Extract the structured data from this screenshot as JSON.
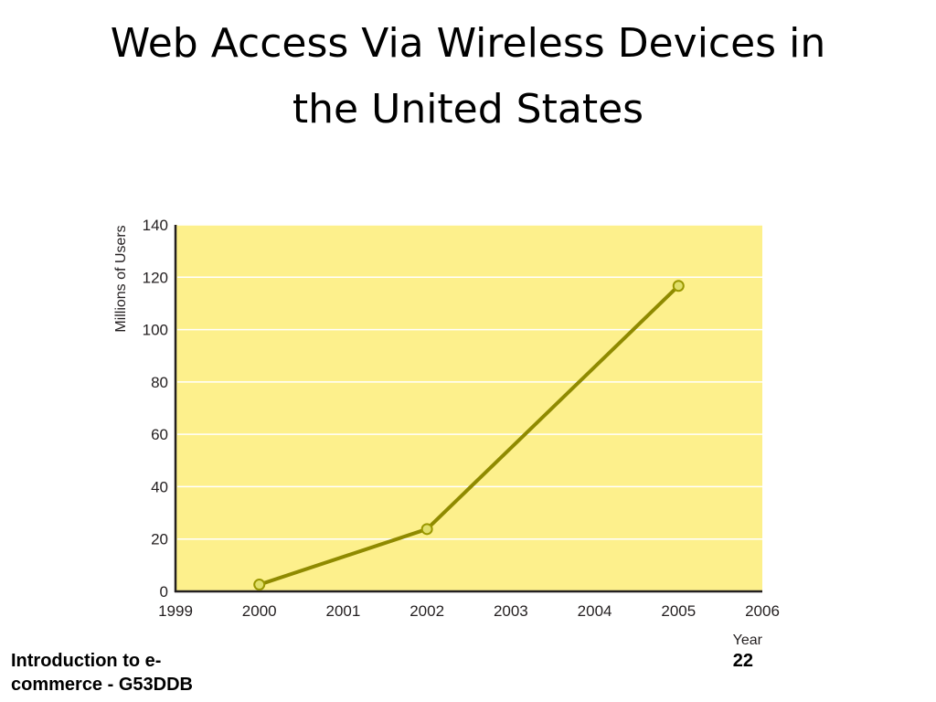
{
  "slide": {
    "title_line1": "Web Access Via Wireless Devices in",
    "title_line2": "the United States",
    "footer_left_line1": "Introduction to e-",
    "footer_left_line2": "commerce - G53DDB",
    "page_number": "22"
  },
  "chart_data": {
    "type": "line",
    "title": "",
    "xlabel": "Year",
    "ylabel": "Millions of Users",
    "x_categories": [
      "1999",
      "2000",
      "2001",
      "2002",
      "2003",
      "2004",
      "2005",
      "2006"
    ],
    "yticks": [
      "0",
      "20",
      "40",
      "60",
      "80",
      "100",
      "120",
      "140"
    ],
    "ylim": [
      0,
      140
    ],
    "grid": true,
    "series": [
      {
        "points": [
          {
            "x": "2000",
            "y": 2.6
          },
          {
            "x": "2002",
            "y": 23.8
          },
          {
            "x": "2005",
            "y": 116.7
          }
        ]
      }
    ],
    "colors": {
      "plot_background": "#fdf08c",
      "line": "#8f8a00",
      "marker_fill": "#e0df6a",
      "marker_stroke": "#9a9700",
      "gridline": "#ffffff",
      "axis": "#231f20"
    }
  }
}
